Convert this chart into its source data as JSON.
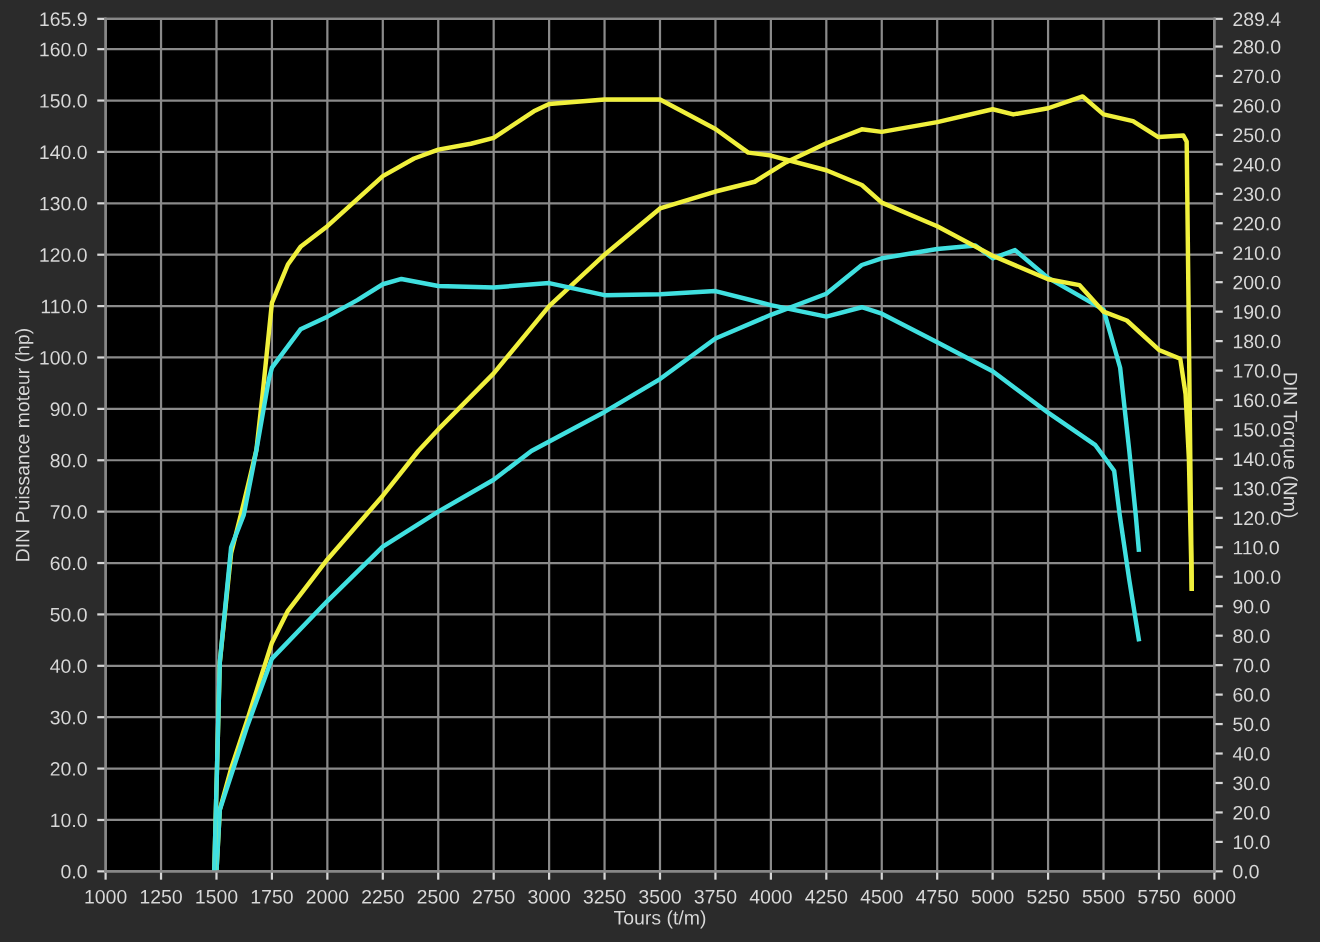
{
  "chart_data": {
    "type": "line",
    "xlabel": "Tours (t/m)",
    "ylabel": "DIN Puissance moteur (hp)",
    "y2label": "DIN Torque (Nm)",
    "xlim": [
      1000,
      6000
    ],
    "xticks": [
      1000,
      1250,
      1500,
      1750,
      2000,
      2250,
      2500,
      2750,
      3000,
      3250,
      3500,
      3750,
      4000,
      4250,
      4500,
      4750,
      5000,
      5250,
      5500,
      5750,
      6000
    ],
    "ylim": [
      0,
      165.9
    ],
    "yticks": [
      {
        "value": 0,
        "label": "0.0"
      },
      {
        "value": 10,
        "label": "10.0"
      },
      {
        "value": 20,
        "label": "20.0"
      },
      {
        "value": 30,
        "label": "30.0"
      },
      {
        "value": 40,
        "label": "40.0"
      },
      {
        "value": 50,
        "label": "50.0"
      },
      {
        "value": 60,
        "label": "60.0"
      },
      {
        "value": 70,
        "label": "70.0"
      },
      {
        "value": 80,
        "label": "80.0"
      },
      {
        "value": 90,
        "label": "90.0"
      },
      {
        "value": 100,
        "label": "100.0"
      },
      {
        "value": 110,
        "label": "110.0"
      },
      {
        "value": 120,
        "label": "120.0"
      },
      {
        "value": 130,
        "label": "130.0"
      },
      {
        "value": 140,
        "label": "140.0"
      },
      {
        "value": 150,
        "label": "150.0"
      },
      {
        "value": 160,
        "label": "160.0"
      },
      165.9
    ],
    "y2lim": [
      0,
      289.4
    ],
    "y2ticks": [
      {
        "value": 0,
        "label": "0.0"
      },
      {
        "value": 10,
        "label": "10.0"
      },
      {
        "value": 20,
        "label": "20.0"
      },
      {
        "value": 30,
        "label": "30.0"
      },
      {
        "value": 40,
        "label": "40.0"
      },
      {
        "value": 50,
        "label": "50.0"
      },
      {
        "value": 60,
        "label": "60.0"
      },
      {
        "value": 70,
        "label": "70.0"
      },
      {
        "value": 80,
        "label": "80.0"
      },
      {
        "value": 90,
        "label": "90.0"
      },
      {
        "value": 100,
        "label": "100.0"
      },
      {
        "value": 110,
        "label": "110.0"
      },
      {
        "value": 120,
        "label": "120.0"
      },
      {
        "value": 130,
        "label": "130.0"
      },
      {
        "value": 140,
        "label": "140.0"
      },
      {
        "value": 150,
        "label": "150.0"
      },
      {
        "value": 160,
        "label": "160.0"
      },
      {
        "value": 170,
        "label": "170.0"
      },
      {
        "value": 180,
        "label": "180.0"
      },
      {
        "value": 190,
        "label": "190.0"
      },
      {
        "value": 200,
        "label": "200.0"
      },
      {
        "value": 210,
        "label": "210.0"
      },
      {
        "value": 220,
        "label": "220.0"
      },
      {
        "value": 230,
        "label": "230.0"
      },
      {
        "value": 240,
        "label": "240.0"
      },
      {
        "value": 250,
        "label": "250.0"
      },
      {
        "value": 260,
        "label": "260.0"
      },
      {
        "value": 270,
        "label": "270.0"
      },
      {
        "value": 280,
        "label": "280.0"
      },
      289.4
    ],
    "grid": true,
    "marker": "none",
    "line_style": "solid",
    "series": [
      {
        "color": "#f0f03c",
        "axis": "y",
        "x": [
          1500,
          1515,
          1566,
          1640,
          1750,
          1822,
          2000,
          2250,
          2410,
          2500,
          2750,
          3000,
          3250,
          3500,
          3750,
          3927,
          4069,
          4250,
          4410,
          4500,
          4750,
          5000,
          5093,
          5250,
          5406,
          5500,
          5633,
          5747,
          5860,
          5875,
          5898
        ],
        "values": [
          0,
          12,
          20,
          29.6,
          44.5,
          50.7,
          60.7,
          73.1,
          81.8,
          86,
          96.9,
          110,
          120,
          129,
          132.3,
          134.2,
          138,
          141.7,
          144.4,
          143.9,
          145.8,
          148.3,
          147.3,
          148.5,
          150.8,
          147.3,
          146,
          142.9,
          143.2,
          142,
          55
        ]
      },
      {
        "color": "#40e0e0",
        "axis": "y",
        "x": [
          1500,
          1515,
          1640,
          1750,
          2000,
          2250,
          2500,
          2750,
          2920,
          3250,
          3500,
          3750,
          4000,
          4250,
          4410,
          4500,
          4750,
          4922,
          5000,
          5101,
          5250,
          5500,
          5575,
          5616,
          5645,
          5659
        ],
        "values": [
          0,
          12,
          28.4,
          41.4,
          52.6,
          63.2,
          70,
          76.2,
          81.8,
          89.4,
          95.8,
          103.7,
          108.3,
          112.4,
          118,
          119.3,
          121.1,
          121.8,
          119.3,
          120.9,
          115.5,
          109.3,
          98,
          81.9,
          69.5,
          62.6
        ]
      },
      {
        "color": "#f0f03c",
        "axis": "y2",
        "x": [
          1490,
          1515,
          1566,
          1623,
          1680,
          1708,
          1750,
          1822,
          1879,
          2000,
          2250,
          2391,
          2500,
          2647,
          2750,
          2931,
          3000,
          3250,
          3500,
          3750,
          3898,
          4000,
          4250,
          4410,
          4500,
          4750,
          5000,
          5250,
          5392,
          5500,
          5605,
          5750,
          5846,
          5870,
          5885,
          5898
        ],
        "values": [
          0,
          71,
          108,
          125,
          143,
          162,
          193,
          206,
          212,
          219,
          236,
          242,
          245,
          247,
          249,
          258,
          260.5,
          262,
          262,
          252,
          244,
          243,
          238,
          233,
          227,
          219,
          209,
          201,
          199,
          190,
          187,
          177,
          174,
          162,
          140,
          96
        ]
      },
      {
        "color": "#40e0e0",
        "axis": "y2",
        "x": [
          1490,
          1515,
          1566,
          1623,
          1680,
          1736,
          1750,
          1879,
          2000,
          2135,
          2250,
          2334,
          2500,
          2750,
          3000,
          3250,
          3500,
          3750,
          4000,
          4250,
          4410,
          4500,
          4750,
          5000,
          5250,
          5462,
          5548,
          5573,
          5616,
          5659
        ],
        "values": [
          0,
          71,
          110,
          121,
          143,
          167,
          171,
          184,
          188.3,
          193.9,
          199.3,
          201.1,
          198.7,
          198.2,
          199.7,
          195.6,
          195.9,
          197,
          192.2,
          188.3,
          191.5,
          189.3,
          179.6,
          169.8,
          155.7,
          144.8,
          136,
          121,
          99,
          78.8
        ]
      }
    ]
  }
}
